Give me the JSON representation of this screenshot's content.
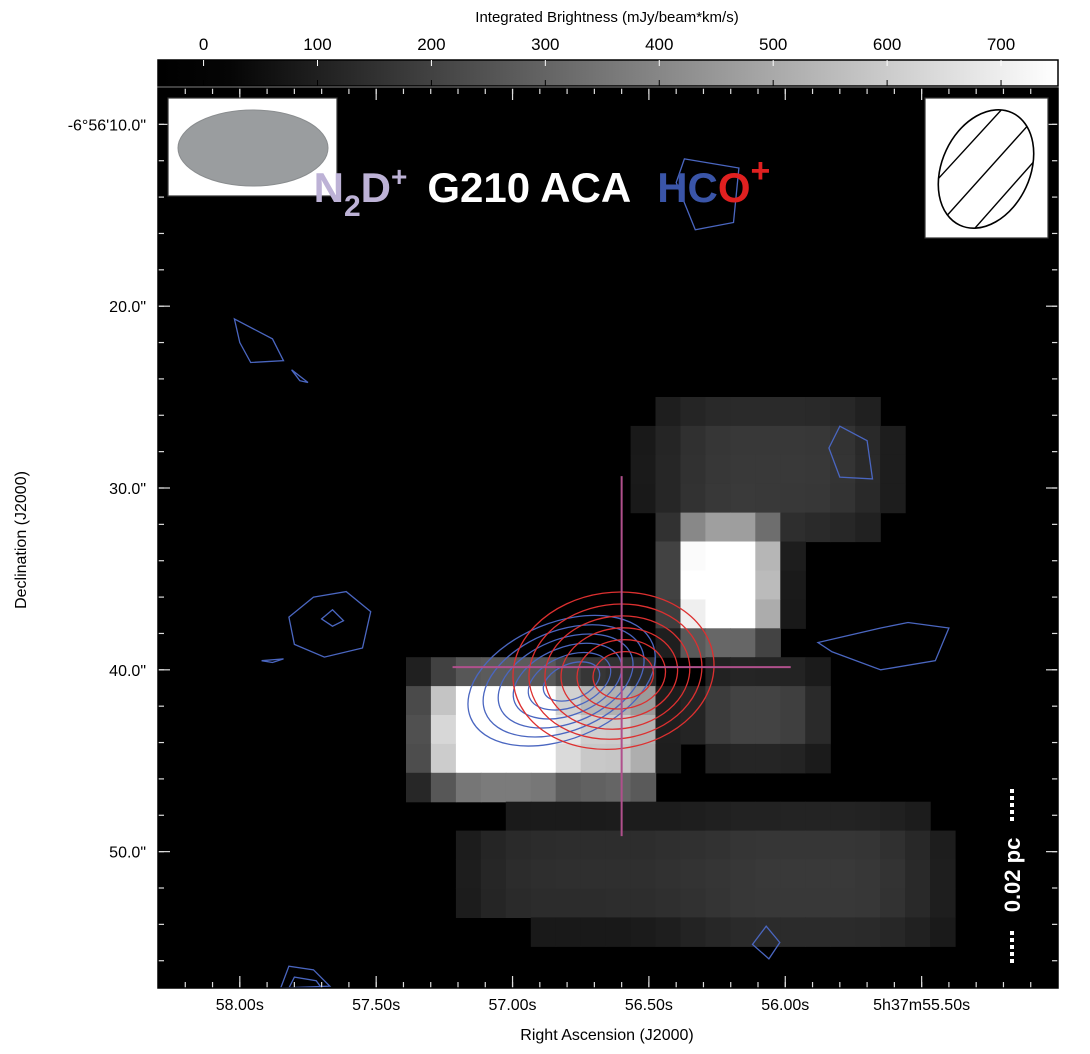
{
  "chart_data": {
    "type": "heatmap",
    "colorbar": {
      "label": "Integrated Brightness (mJy/beam*km/s)",
      "ticks": [
        "0",
        "100",
        "200",
        "300",
        "400",
        "500",
        "600",
        "700"
      ],
      "tick_values": [
        0,
        100,
        200,
        300,
        400,
        500,
        600,
        700
      ],
      "range": [
        -40,
        750
      ],
      "colormap": "gray"
    },
    "xlabel": "Right Ascension (J2000)",
    "ylabel": "Declination (J2000)",
    "xticks": [
      "58.00s",
      "57.50s",
      "57.00s",
      "56.50s",
      "56.00s",
      "5h37m55.50s"
    ],
    "xtick_values": [
      58.0,
      57.5,
      57.0,
      56.5,
      56.0,
      55.5
    ],
    "xlim": [
      58.3,
      55.0
    ],
    "yticks": [
      "-6°56'10.0\"",
      "20.0\"",
      "30.0\"",
      "40.0\"",
      "50.0\""
    ],
    "ytick_values": [
      10,
      20,
      30,
      40,
      50
    ],
    "ylim": [
      57.5,
      8.0
    ],
    "title": {
      "left_main": "N",
      "left_sub": "2",
      "left_tail": "D",
      "left_sup": "+",
      "center": "G210 ACA",
      "right_blue": "HC",
      "right_red": "O",
      "right_sup": "+"
    },
    "scale_bar_label": "0.02 pc",
    "colors": {
      "n2d_label": "#bdb2d6",
      "hco_blue": "#3a55a8",
      "hco_red": "#e02020",
      "cross": "#b0508c",
      "blue_contour": "#4a66c0",
      "red_contour": "#dd3030"
    },
    "image": {
      "ra_start": 58.26,
      "ra_step": -0.0915,
      "dec_start": 8.3,
      "dec_step": 1.59,
      "sources": [
        {
          "ra": 57.02,
          "dec": 43.4,
          "amp": 960,
          "sx": 0.24,
          "sy": 2.5
        },
        {
          "ra": 56.6,
          "dec": 43.6,
          "amp": 560,
          "sx": 0.11,
          "sy": 2.5
        },
        {
          "ra": 56.22,
          "dec": 35.2,
          "amp": 930,
          "sx": 0.15,
          "sy": 2.6
        },
        {
          "ra": 56.1,
          "dec": 42.5,
          "amp": 140,
          "sx": 0.2,
          "sy": 2.0
        },
        {
          "ra": 56.05,
          "dec": 29.0,
          "amp": 110,
          "sx": 0.35,
          "sy": 3.2
        },
        {
          "ra": 55.92,
          "dec": 51.5,
          "amp": 110,
          "sx": 0.4,
          "sy": 3.0
        },
        {
          "ra": 56.75,
          "dec": 51.2,
          "amp": 80,
          "sx": 0.35,
          "sy": 2.5
        }
      ]
    },
    "cross": {
      "ra": 56.6,
      "dec": 39.85,
      "ra_half": 0.62,
      "dec_up": 10.5,
      "dec_down": 9.3
    },
    "red_contours": {
      "ra": 56.63,
      "dec": 40.05,
      "a": 0.37,
      "b": 4.3,
      "pa_deg": -8,
      "levels": 6
    },
    "blue_contours": {
      "ra": 56.82,
      "dec": 40.6,
      "a": 0.36,
      "b": 3.2,
      "pa_deg": -22,
      "levels": 6
    },
    "blue_polygons": [
      [
        [
          56.37,
          11.9
        ],
        [
          56.17,
          12.4
        ],
        [
          56.19,
          15.4
        ],
        [
          56.33,
          15.8
        ],
        [
          56.4,
          13.2
        ]
      ],
      [
        [
          58.02,
          20.7
        ],
        [
          57.88,
          21.8
        ],
        [
          57.84,
          23.0
        ],
        [
          57.96,
          23.1
        ],
        [
          58.0,
          22.0
        ]
      ],
      [
        [
          57.81,
          23.5
        ],
        [
          57.78,
          24.1
        ],
        [
          57.75,
          24.2
        ]
      ],
      [
        [
          55.8,
          26.6
        ],
        [
          55.7,
          27.4
        ],
        [
          55.68,
          29.5
        ],
        [
          55.8,
          29.4
        ],
        [
          55.84,
          27.8
        ]
      ],
      [
        [
          57.73,
          36.0
        ],
        [
          57.61,
          35.7
        ],
        [
          57.52,
          36.8
        ],
        [
          57.55,
          38.8
        ],
        [
          57.69,
          39.3
        ],
        [
          57.8,
          38.6
        ],
        [
          57.82,
          37.1
        ]
      ],
      [
        [
          57.7,
          37.2
        ],
        [
          57.66,
          36.7
        ],
        [
          57.62,
          37.3
        ],
        [
          57.66,
          37.6
        ]
      ],
      [
        [
          57.92,
          39.5
        ],
        [
          57.88,
          39.6
        ],
        [
          57.84,
          39.4
        ]
      ],
      [
        [
          55.83,
          39.0
        ],
        [
          55.65,
          40.0
        ],
        [
          55.45,
          39.5
        ],
        [
          55.4,
          37.7
        ],
        [
          55.55,
          37.4
        ],
        [
          55.65,
          37.7
        ],
        [
          55.88,
          38.5
        ]
      ],
      [
        [
          56.07,
          54.1
        ],
        [
          56.02,
          55.0
        ],
        [
          56.06,
          55.9
        ],
        [
          56.12,
          55.1
        ]
      ],
      [
        [
          57.85,
          57.5
        ],
        [
          57.82,
          56.3
        ],
        [
          57.73,
          56.5
        ],
        [
          57.67,
          57.4
        ]
      ],
      [
        [
          57.82,
          57.5
        ],
        [
          57.8,
          56.9
        ],
        [
          57.72,
          57.1
        ],
        [
          57.7,
          57.5
        ]
      ]
    ]
  }
}
